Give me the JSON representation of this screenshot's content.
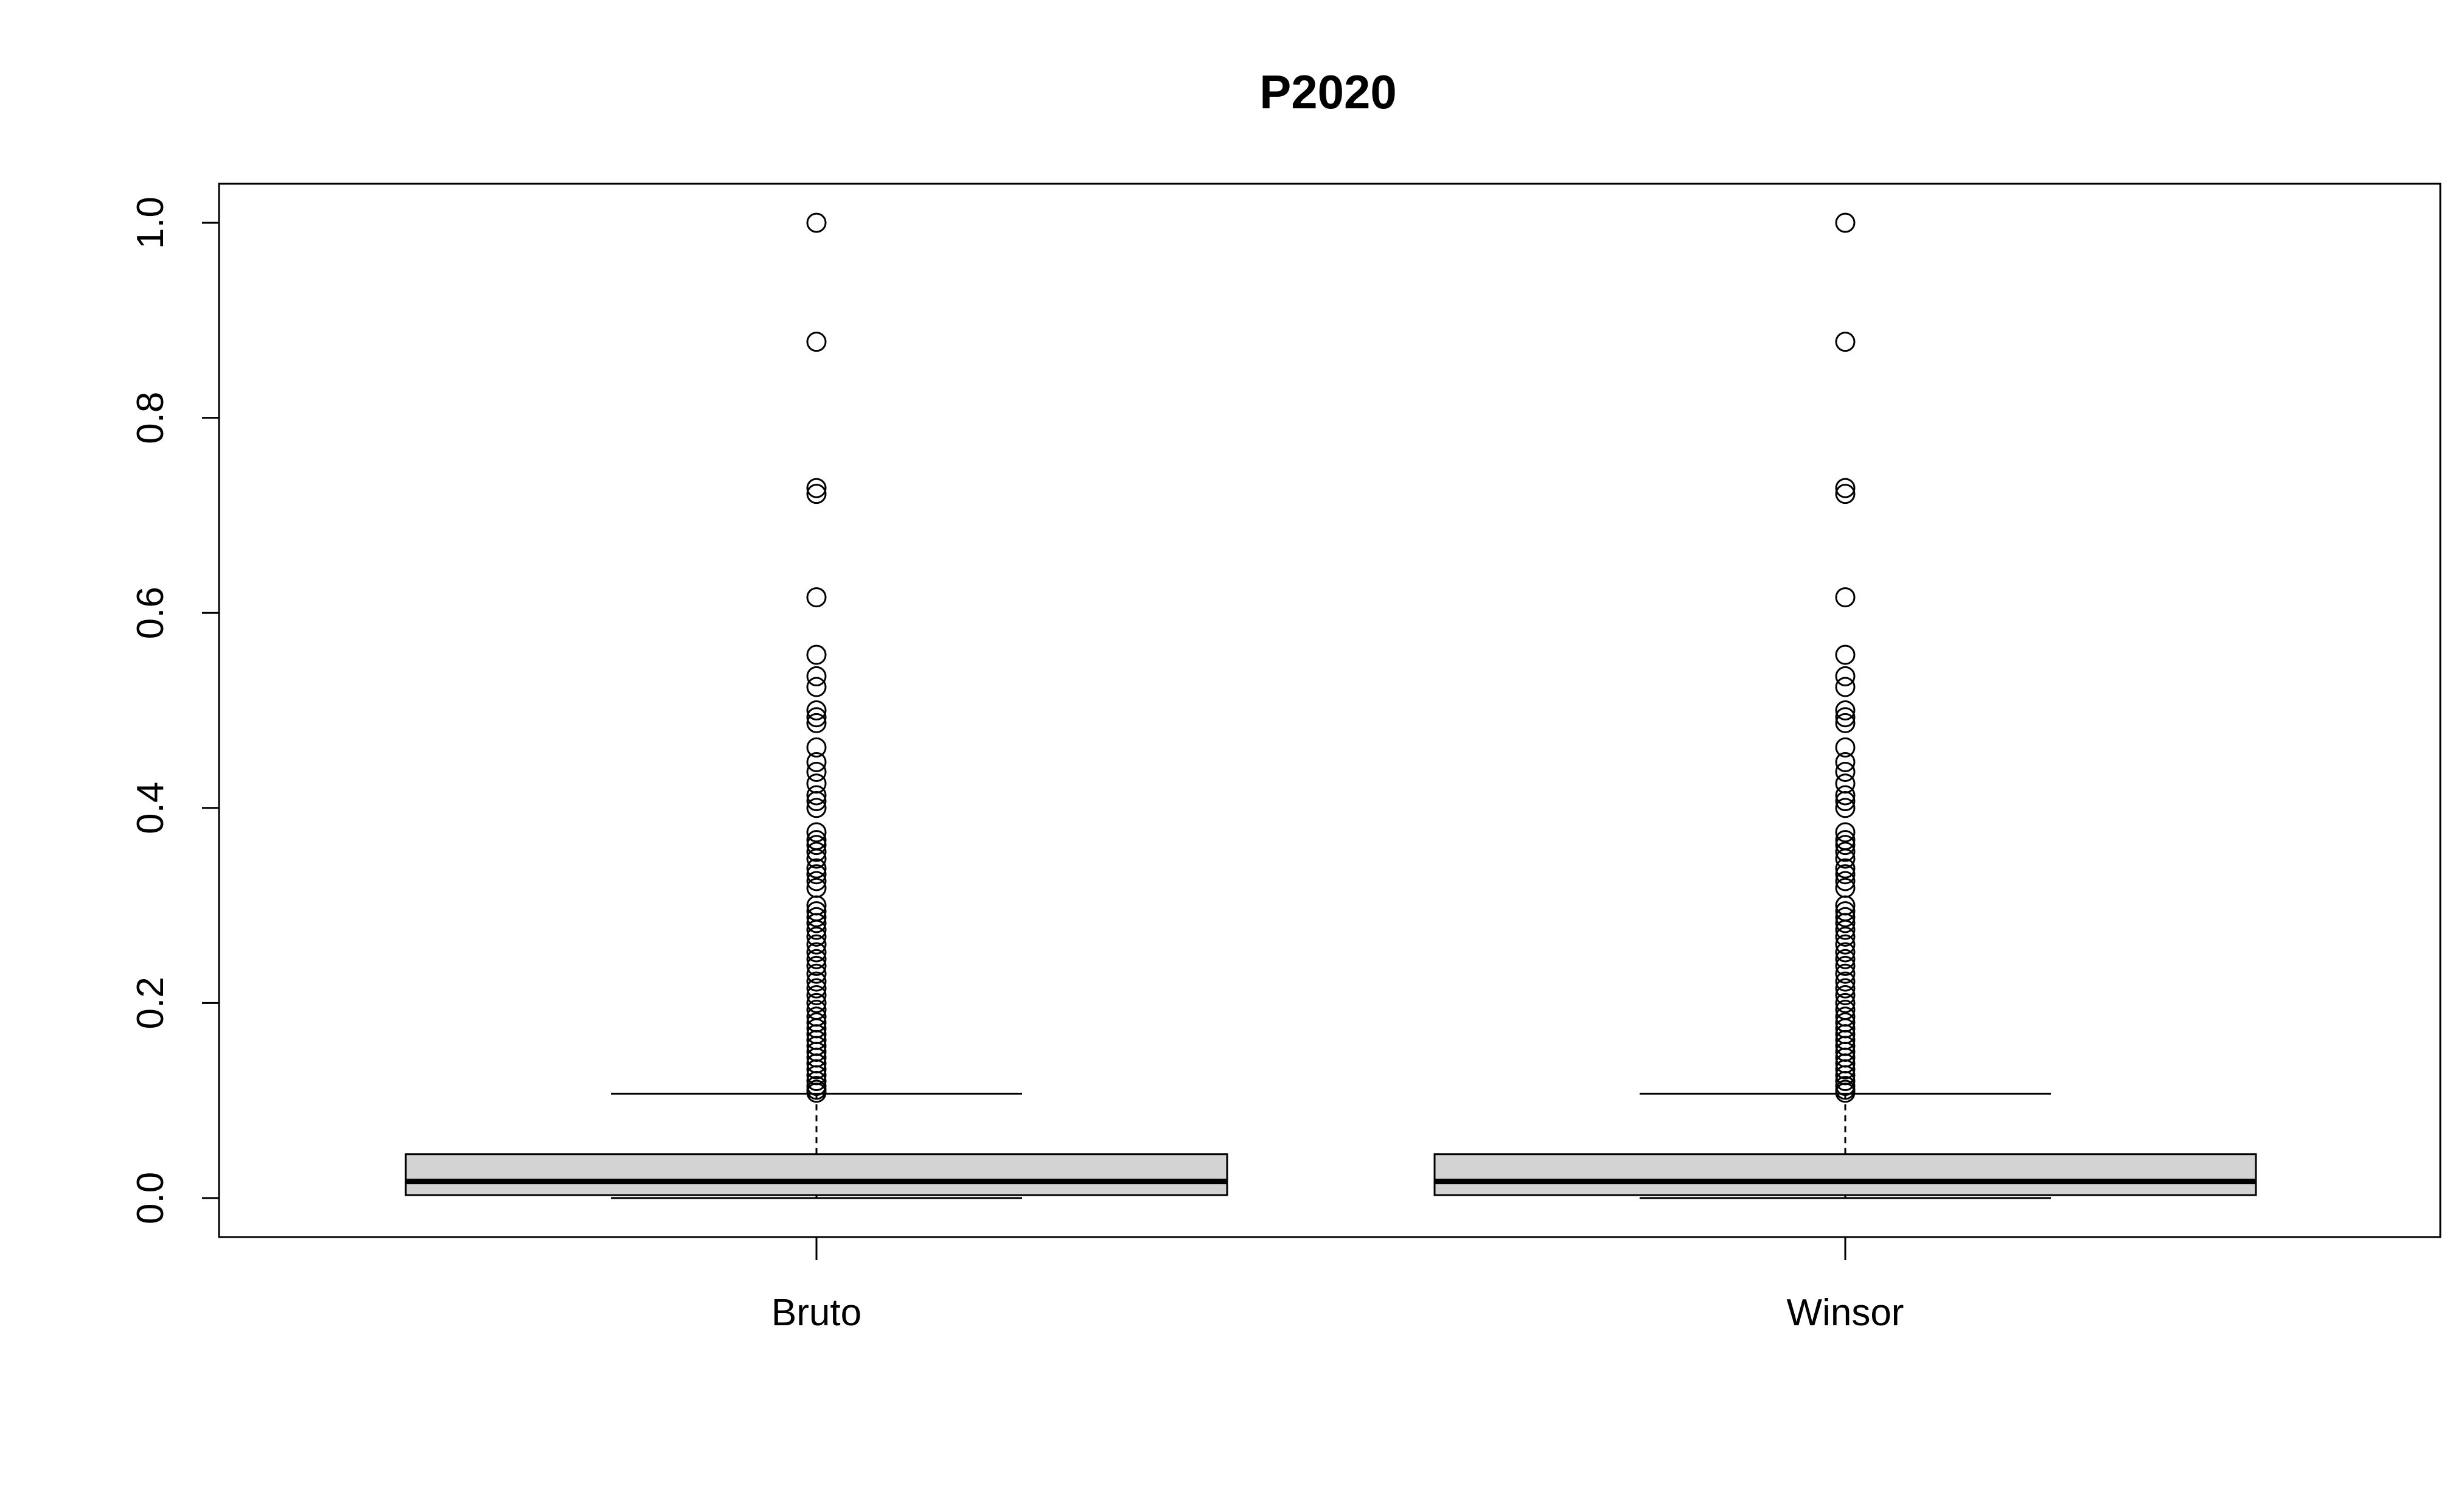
{
  "chart_data": {
    "type": "boxplot",
    "title": "P2020",
    "xlabel": "",
    "ylabel": "",
    "ylim": [
      -0.04,
      1.04
    ],
    "yticks": [
      0.0,
      0.2,
      0.4,
      0.6,
      0.8,
      1.0
    ],
    "ytick_labels": [
      "0.0",
      "0.2",
      "0.4",
      "0.6",
      "0.8",
      "1.0"
    ],
    "grid": false,
    "legend": "none",
    "box_fill": "#d3d3d3",
    "stroke": "#000000",
    "categories": [
      "Bruto",
      "Winsor"
    ],
    "boxes": [
      {
        "label": "Bruto",
        "whisker_low": 0.0,
        "q1": 0.003,
        "median": 0.017,
        "q3": 0.045,
        "whisker_high": 0.107,
        "outliers": [
          1.0,
          0.878,
          0.728,
          0.722,
          0.616,
          0.557,
          0.535,
          0.524,
          0.5,
          0.493,
          0.487,
          0.462,
          0.447,
          0.437,
          0.425,
          0.413,
          0.407,
          0.4,
          0.375,
          0.367,
          0.362,
          0.355,
          0.348,
          0.338,
          0.332,
          0.325,
          0.318,
          0.3,
          0.294,
          0.288,
          0.282,
          0.275,
          0.268,
          0.26,
          0.252,
          0.245,
          0.238,
          0.23,
          0.222,
          0.215,
          0.208,
          0.2,
          0.193,
          0.186,
          0.18,
          0.174,
          0.168,
          0.162,
          0.156,
          0.15,
          0.144,
          0.138,
          0.132,
          0.126,
          0.12,
          0.115,
          0.111,
          0.108
        ]
      },
      {
        "label": "Winsor",
        "whisker_low": 0.0,
        "q1": 0.003,
        "median": 0.017,
        "q3": 0.045,
        "whisker_high": 0.107,
        "outliers": [
          1.0,
          0.878,
          0.728,
          0.722,
          0.616,
          0.557,
          0.535,
          0.524,
          0.5,
          0.493,
          0.487,
          0.462,
          0.447,
          0.437,
          0.425,
          0.413,
          0.407,
          0.4,
          0.375,
          0.367,
          0.362,
          0.355,
          0.348,
          0.338,
          0.332,
          0.325,
          0.318,
          0.3,
          0.294,
          0.288,
          0.282,
          0.275,
          0.268,
          0.26,
          0.252,
          0.245,
          0.238,
          0.23,
          0.222,
          0.215,
          0.208,
          0.2,
          0.193,
          0.186,
          0.18,
          0.174,
          0.168,
          0.162,
          0.156,
          0.15,
          0.144,
          0.138,
          0.132,
          0.126,
          0.12,
          0.115,
          0.111,
          0.108
        ]
      }
    ]
  }
}
